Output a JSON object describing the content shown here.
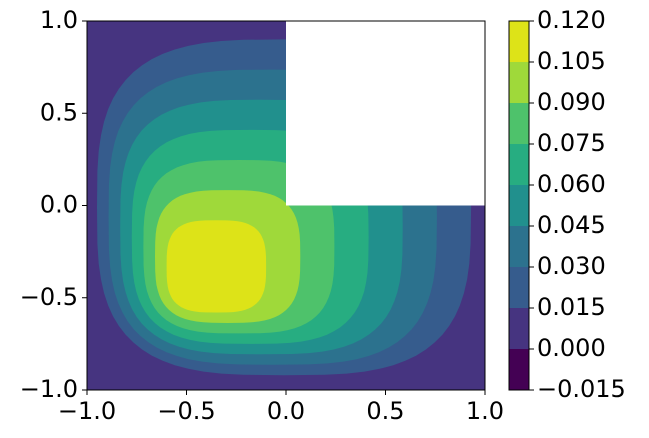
{
  "chart_data": {
    "type": "contour",
    "xlim": [
      -1,
      1
    ],
    "ylim": [
      -1,
      1
    ],
    "xticks": [
      {
        "value": -1,
        "label": "−1.0"
      },
      {
        "value": -0.5,
        "label": "−0.5"
      },
      {
        "value": 0,
        "label": "0.0"
      },
      {
        "value": 0.5,
        "label": "0.5"
      },
      {
        "value": 1,
        "label": "1.0"
      }
    ],
    "yticks": [
      {
        "value": -1,
        "label": "−1.0"
      },
      {
        "value": -0.5,
        "label": "−0.5"
      },
      {
        "value": 0,
        "label": "0.0"
      },
      {
        "value": 0.5,
        "label": "0.5"
      },
      {
        "value": 1,
        "label": "1.0"
      }
    ],
    "levels": [
      {
        "value": -0.015,
        "label": "−0.015"
      },
      {
        "value": 0,
        "label": "0.000"
      },
      {
        "value": 0.015,
        "label": "0.015"
      },
      {
        "value": 0.03,
        "label": "0.030"
      },
      {
        "value": 0.045,
        "label": "0.045"
      },
      {
        "value": 0.06,
        "label": "0.060"
      },
      {
        "value": 0.075,
        "label": "0.075"
      },
      {
        "value": 0.09,
        "label": "0.090"
      },
      {
        "value": 0.105,
        "label": "0.105"
      },
      {
        "value": 0.12,
        "label": "0.120"
      }
    ],
    "colors": [
      "#440154",
      "#463480",
      "#365c8d",
      "#2c728e",
      "#21908d",
      "#27ad81",
      "#4ec26b",
      "#9fd93a",
      "#dde318"
    ]
  }
}
